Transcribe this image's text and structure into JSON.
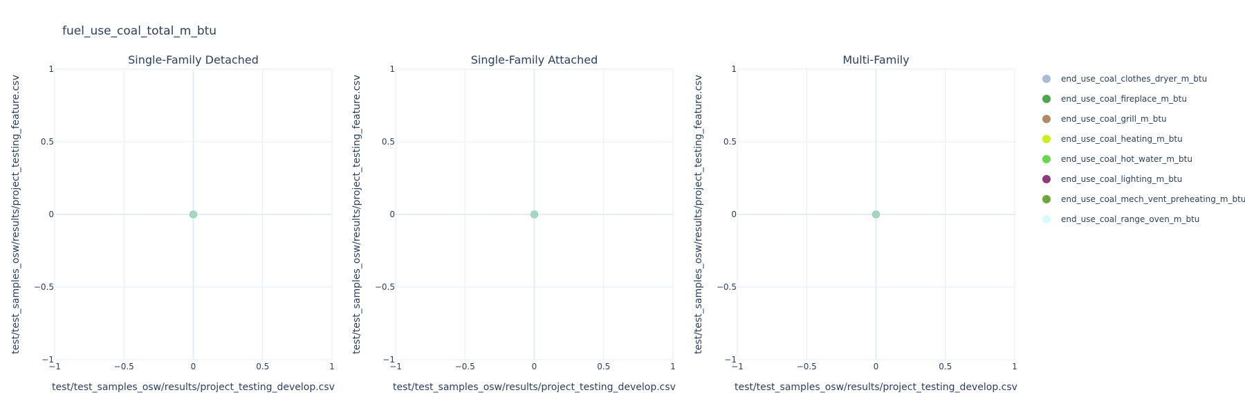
{
  "figure": {
    "title": "fuel_use_coal_total_m_btu",
    "background": "#ffffff",
    "grid_color": "#e6ecf5",
    "text_color": "#2a3f5f"
  },
  "chart_data": [
    {
      "type": "scatter",
      "title": "Single-Family Detached",
      "xlabel": "test/test_samples_osw/results/project_testing_develop.csv",
      "ylabel": "test/test_samples_osw/results/project_testing_feature.csv",
      "xlim": [
        -1,
        1
      ],
      "ylim": [
        -1,
        1
      ],
      "xticks": [
        "−1",
        "−0.5",
        "0",
        "0.5",
        "1"
      ],
      "yticks": [
        "−1",
        "−0.5",
        "0",
        "0.5",
        "1"
      ],
      "grid": true,
      "points": [
        {
          "x": 0,
          "y": 0
        }
      ]
    },
    {
      "type": "scatter",
      "title": "Single-Family Attached",
      "xlabel": "test/test_samples_osw/results/project_testing_develop.csv",
      "ylabel": "test/test_samples_osw/results/project_testing_feature.csv",
      "xlim": [
        -1,
        1
      ],
      "ylim": [
        -1,
        1
      ],
      "xticks": [
        "−1",
        "−0.5",
        "0",
        "0.5",
        "1"
      ],
      "yticks": [
        "−1",
        "−0.5",
        "0",
        "0.5",
        "1"
      ],
      "grid": true,
      "points": [
        {
          "x": 0,
          "y": 0
        }
      ]
    },
    {
      "type": "scatter",
      "title": "Multi-Family",
      "xlabel": "test/test_samples_osw/results/project_testing_develop.csv",
      "ylabel": "test/test_samples_osw/results/project_testing_feature.csv",
      "xlim": [
        -1,
        1
      ],
      "ylim": [
        -1,
        1
      ],
      "xticks": [
        "−1",
        "−0.5",
        "0",
        "0.5",
        "1"
      ],
      "yticks": [
        "−1",
        "−0.5",
        "0",
        "0.5",
        "1"
      ],
      "grid": true,
      "points": [
        {
          "x": 0,
          "y": 0
        }
      ]
    }
  ],
  "legend": {
    "placement": "right",
    "items": [
      {
        "label": "end_use_coal_clothes_dryer_m_btu",
        "color": "#a8bdd8"
      },
      {
        "label": "end_use_coal_fireplace_m_btu",
        "color": "#4aa74a"
      },
      {
        "label": "end_use_coal_grill_m_btu",
        "color": "#b08a60"
      },
      {
        "label": "end_use_coal_heating_m_btu",
        "color": "#c6f21a"
      },
      {
        "label": "end_use_coal_hot_water_m_btu",
        "color": "#66d84a"
      },
      {
        "label": "end_use_coal_lighting_m_btu",
        "color": "#8e3a80"
      },
      {
        "label": "end_use_coal_mech_vent_preheating_m_btu",
        "color": "#6aa83a"
      },
      {
        "label": "end_use_coal_range_oven_m_btu",
        "color": "#d8fbff"
      }
    ]
  }
}
